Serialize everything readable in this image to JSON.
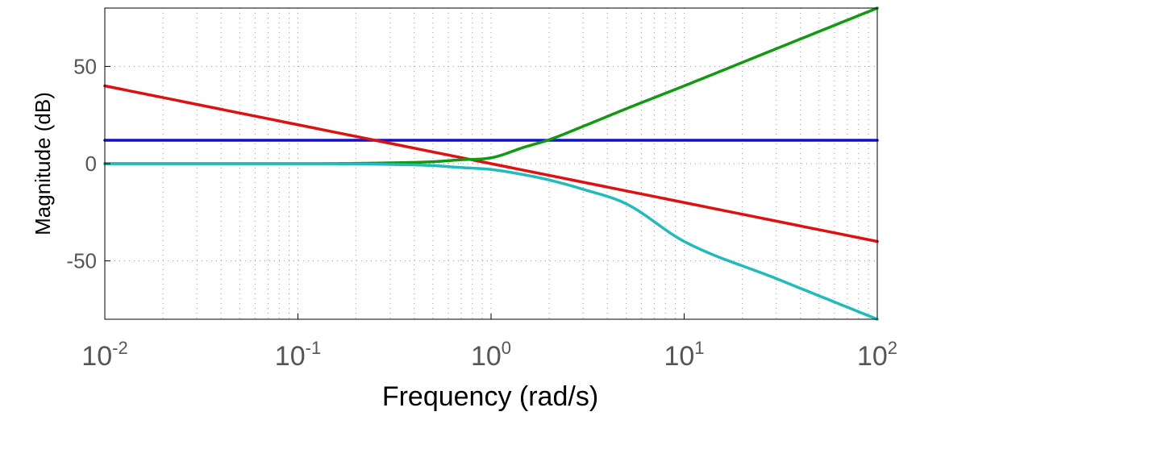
{
  "chart_data": {
    "type": "line",
    "xscale": "log",
    "xlabel": "Frequency  (rad/s)",
    "ylabel": "Magnitude (dB)",
    "xlim": [
      0.01,
      100
    ],
    "ylim": [
      -80,
      80
    ],
    "grid": true,
    "x_ticks": [
      {
        "base": "10",
        "exp": "-2",
        "value": 0.01
      },
      {
        "base": "10",
        "exp": "-1",
        "value": 0.1
      },
      {
        "base": "10",
        "exp": "0",
        "value": 1
      },
      {
        "base": "10",
        "exp": "1",
        "value": 10
      },
      {
        "base": "10",
        "exp": "2",
        "value": 100
      }
    ],
    "y_ticks": [
      {
        "label": "50",
        "value": 50
      },
      {
        "label": "0",
        "value": 0
      },
      {
        "label": "-50",
        "value": -50
      }
    ],
    "series": [
      {
        "color": "#1111cc",
        "x": [
          0.01,
          0.1,
          1,
          10,
          100
        ],
        "y": [
          12,
          12,
          12,
          12,
          12
        ]
      },
      {
        "color": "#dd1111",
        "x": [
          0.01,
          0.1,
          1,
          10,
          100
        ],
        "y": [
          40,
          20,
          0,
          -20,
          -40
        ]
      },
      {
        "color": "#119911",
        "x": [
          0.01,
          0.1,
          0.3,
          0.5,
          0.7,
          1,
          1.5,
          2,
          3,
          5,
          10,
          30,
          100
        ],
        "y": [
          0,
          0,
          0.4,
          1,
          2,
          3,
          8.6,
          12.3,
          19.2,
          28.2,
          40,
          59.1,
          80
        ]
      },
      {
        "color": "#22bbbb",
        "x": [
          0.01,
          0.1,
          0.3,
          0.5,
          0.7,
          1,
          1.5,
          2,
          3,
          5,
          10,
          30,
          100
        ],
        "y": [
          0,
          0,
          -0.4,
          -1,
          -2,
          -3,
          -5.8,
          -8.4,
          -13.2,
          -20.6,
          -40,
          -59.1,
          -80
        ]
      }
    ]
  }
}
